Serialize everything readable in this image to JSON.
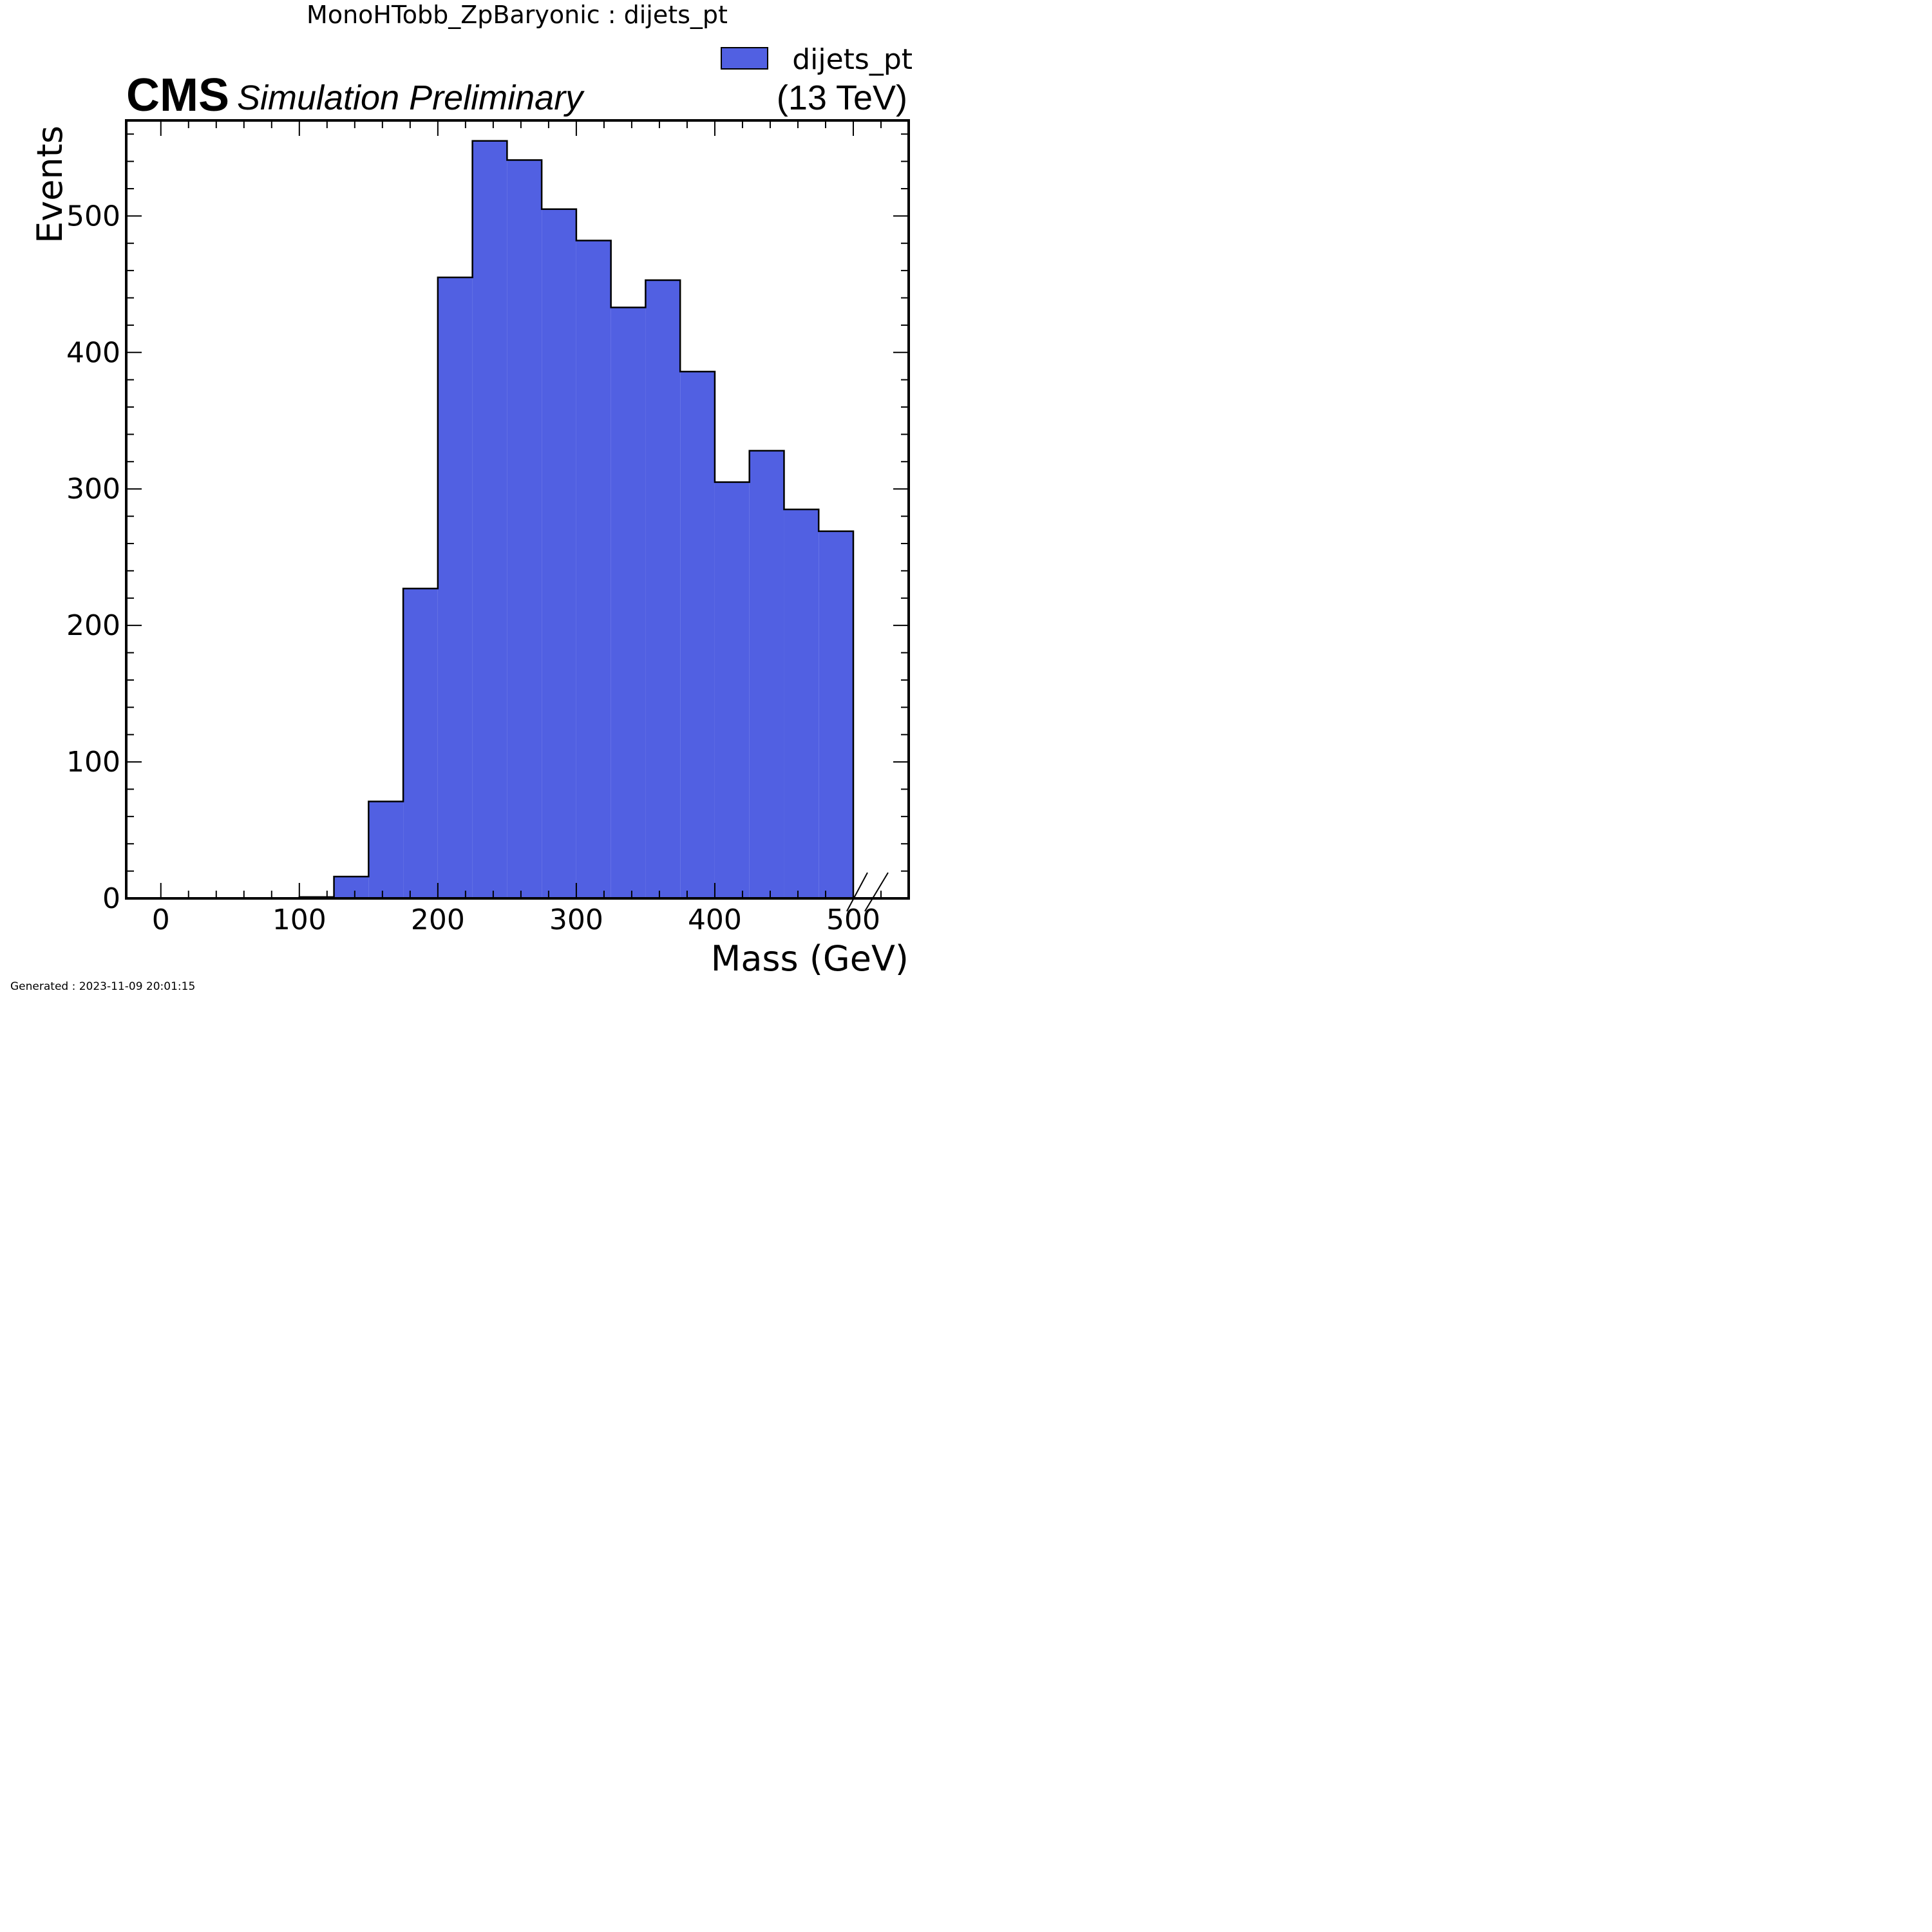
{
  "page": {
    "title": "MonoHTobb_ZpBaryonic : dijets_pt",
    "footer": "Generated : 2023-11-09 20:01:15"
  },
  "cms_label": {
    "main": "CMS",
    "sub": "Simulation Preliminary",
    "energy": "(13 TeV)"
  },
  "chart_data": {
    "type": "bar",
    "title": "MonoHTobb_ZpBaryonic : dijets_pt",
    "xlabel": "Mass (GeV)",
    "ylabel": "Events",
    "xlim": [
      -25,
      540
    ],
    "ylim": [
      0,
      570
    ],
    "x_ticks": [
      0,
      100,
      200,
      300,
      400,
      500
    ],
    "y_ticks": [
      0,
      100,
      200,
      300,
      400,
      500
    ],
    "grid": false,
    "legend_position": "top-right",
    "overflow_marker": true,
    "series": [
      {
        "name": "dijets_pt",
        "color": "#5160e2",
        "edge_color": "#000000",
        "bin_edges": [
          0,
          25,
          50,
          75,
          100,
          125,
          150,
          175,
          200,
          225,
          250,
          275,
          300,
          325,
          350,
          375,
          400,
          425,
          450,
          475,
          500
        ],
        "values": [
          0,
          0,
          0,
          0,
          1,
          16,
          71,
          227,
          455,
          555,
          541,
          505,
          482,
          433,
          453,
          386,
          305,
          328,
          285,
          269
        ]
      }
    ]
  }
}
